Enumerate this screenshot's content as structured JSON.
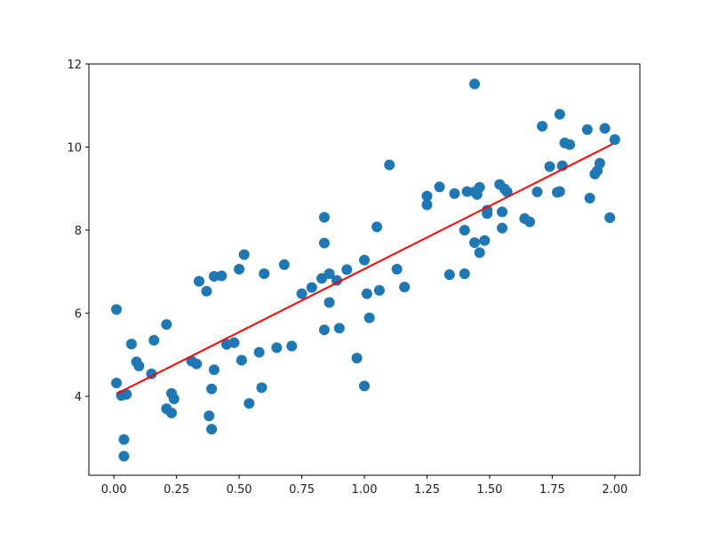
{
  "chart_data": {
    "type": "scatter",
    "title": "",
    "xlabel": "",
    "ylabel": "",
    "xlim": [
      -0.1,
      2.1
    ],
    "ylim": [
      2.1,
      12.0
    ],
    "grid": false,
    "x_ticks": [
      0.0,
      0.25,
      0.5,
      0.75,
      1.0,
      1.25,
      1.5,
      1.75,
      2.0
    ],
    "x_tick_labels": [
      "0.00",
      "0.25",
      "0.50",
      "0.75",
      "1.00",
      "1.25",
      "1.50",
      "1.75",
      "2.00"
    ],
    "y_ticks": [
      4,
      6,
      8,
      10,
      12
    ],
    "y_tick_labels": [
      "4",
      "6",
      "8",
      "10",
      "12"
    ],
    "point_color": "#1f77b4",
    "fit_color": "#ff0000",
    "series": [
      {
        "type": "scatter",
        "points": [
          [
            0.01,
            6.09
          ],
          [
            0.01,
            4.32
          ],
          [
            0.03,
            4.02
          ],
          [
            0.04,
            2.96
          ],
          [
            0.04,
            2.56
          ],
          [
            0.05,
            4.05
          ],
          [
            0.07,
            5.26
          ],
          [
            0.09,
            4.83
          ],
          [
            0.1,
            4.73
          ],
          [
            0.15,
            4.54
          ],
          [
            0.16,
            5.35
          ],
          [
            0.21,
            3.7
          ],
          [
            0.21,
            5.73
          ],
          [
            0.23,
            3.6
          ],
          [
            0.23,
            4.07
          ],
          [
            0.24,
            3.94
          ],
          [
            0.31,
            4.85
          ],
          [
            0.33,
            4.78
          ],
          [
            0.34,
            6.77
          ],
          [
            0.37,
            6.53
          ],
          [
            0.38,
            3.53
          ],
          [
            0.39,
            3.21
          ],
          [
            0.39,
            4.18
          ],
          [
            0.4,
            4.64
          ],
          [
            0.4,
            6.89
          ],
          [
            0.43,
            6.9
          ],
          [
            0.45,
            5.25
          ],
          [
            0.48,
            5.29
          ],
          [
            0.5,
            7.06
          ],
          [
            0.51,
            4.87
          ],
          [
            0.52,
            7.41
          ],
          [
            0.54,
            3.83
          ],
          [
            0.58,
            5.06
          ],
          [
            0.59,
            4.21
          ],
          [
            0.6,
            6.95
          ],
          [
            0.65,
            5.17
          ],
          [
            0.68,
            7.17
          ],
          [
            0.71,
            5.21
          ],
          [
            0.75,
            6.47
          ],
          [
            0.79,
            6.62
          ],
          [
            0.83,
            6.84
          ],
          [
            0.84,
            8.31
          ],
          [
            0.84,
            5.6
          ],
          [
            0.84,
            7.69
          ],
          [
            0.86,
            6.95
          ],
          [
            0.86,
            6.26
          ],
          [
            0.89,
            6.79
          ],
          [
            0.9,
            5.64
          ],
          [
            0.93,
            7.05
          ],
          [
            0.97,
            4.92
          ],
          [
            1.0,
            7.28
          ],
          [
            1.0,
            4.25
          ],
          [
            1.01,
            6.47
          ],
          [
            1.02,
            5.89
          ],
          [
            1.05,
            8.08
          ],
          [
            1.06,
            6.55
          ],
          [
            1.1,
            9.57
          ],
          [
            1.13,
            7.06
          ],
          [
            1.16,
            6.63
          ],
          [
            1.25,
            8.61
          ],
          [
            1.25,
            8.82
          ],
          [
            1.3,
            9.04
          ],
          [
            1.34,
            6.93
          ],
          [
            1.36,
            8.88
          ],
          [
            1.4,
            6.95
          ],
          [
            1.4,
            8.0
          ],
          [
            1.41,
            8.93
          ],
          [
            1.44,
            8.92
          ],
          [
            1.44,
            11.52
          ],
          [
            1.44,
            7.7
          ],
          [
            1.45,
            8.86
          ],
          [
            1.46,
            9.03
          ],
          [
            1.46,
            7.46
          ],
          [
            1.48,
            7.75
          ],
          [
            1.49,
            8.4
          ],
          [
            1.49,
            8.48
          ],
          [
            1.54,
            9.1
          ],
          [
            1.55,
            8.44
          ],
          [
            1.55,
            8.05
          ],
          [
            1.56,
            8.99
          ],
          [
            1.57,
            8.92
          ],
          [
            1.64,
            8.28
          ],
          [
            1.66,
            8.2
          ],
          [
            1.69,
            8.92
          ],
          [
            1.71,
            10.5
          ],
          [
            1.74,
            9.53
          ],
          [
            1.77,
            8.91
          ],
          [
            1.78,
            10.79
          ],
          [
            1.78,
            8.93
          ],
          [
            1.79,
            9.55
          ],
          [
            1.8,
            10.1
          ],
          [
            1.82,
            10.06
          ],
          [
            1.89,
            10.42
          ],
          [
            1.9,
            8.77
          ],
          [
            1.92,
            9.35
          ],
          [
            1.93,
            9.43
          ],
          [
            1.94,
            9.61
          ],
          [
            1.96,
            10.45
          ],
          [
            1.98,
            8.3
          ],
          [
            2.0,
            10.18
          ]
        ]
      },
      {
        "type": "line",
        "points": [
          [
            0.01,
            4.06
          ],
          [
            1.99,
            10.07
          ]
        ]
      }
    ]
  }
}
